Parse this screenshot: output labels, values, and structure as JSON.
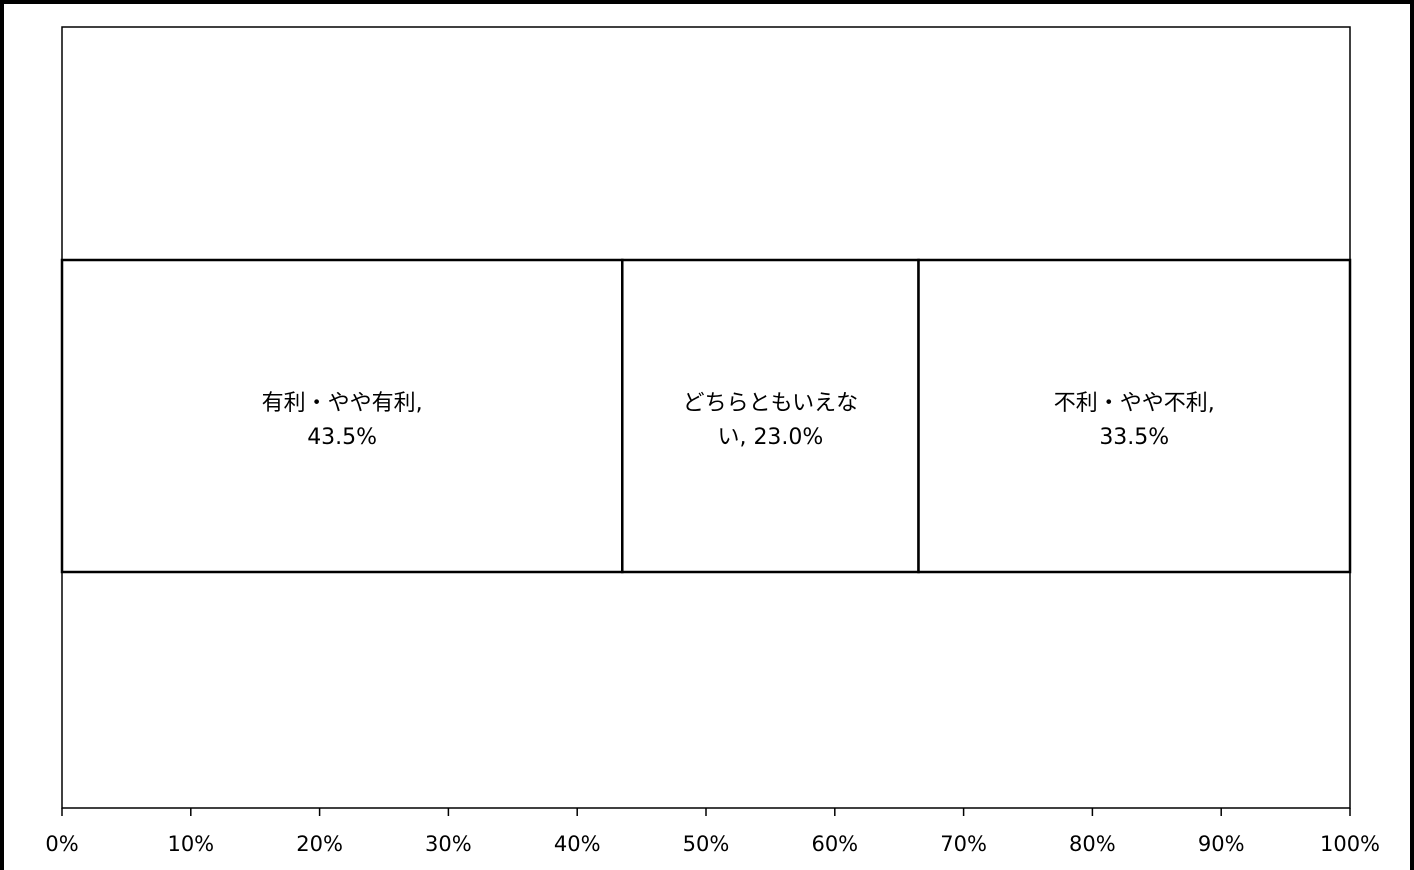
{
  "chart_data": {
    "type": "bar",
    "orientation": "horizontal",
    "stacked": true,
    "percent_axis": true,
    "categories": [
      ""
    ],
    "series": [
      {
        "name": "有利・やや有利,",
        "values": [
          43.5
        ],
        "label_lines": [
          "有利・やや有利,",
          "43.5%"
        ]
      },
      {
        "name": "どちらともいえない,",
        "values": [
          23.0
        ],
        "label_lines": [
          "どちらともいえな",
          "い, 23.0%"
        ]
      },
      {
        "name": "不利・やや不利,",
        "values": [
          33.5
        ],
        "label_lines": [
          "不利・やや不利,",
          "33.5%"
        ]
      }
    ],
    "xlim": [
      0,
      100
    ],
    "xticks": [
      0,
      10,
      20,
      30,
      40,
      50,
      60,
      70,
      80,
      90,
      100
    ],
    "xtick_labels": [
      "0%",
      "10%",
      "20%",
      "30%",
      "40%",
      "50%",
      "60%",
      "70%",
      "80%",
      "90%",
      "100%"
    ],
    "title": "",
    "xlabel": "",
    "ylabel": "",
    "grid": false,
    "legend": "none",
    "colors": {
      "fill": "#ffffff",
      "stroke": "#000000"
    }
  }
}
